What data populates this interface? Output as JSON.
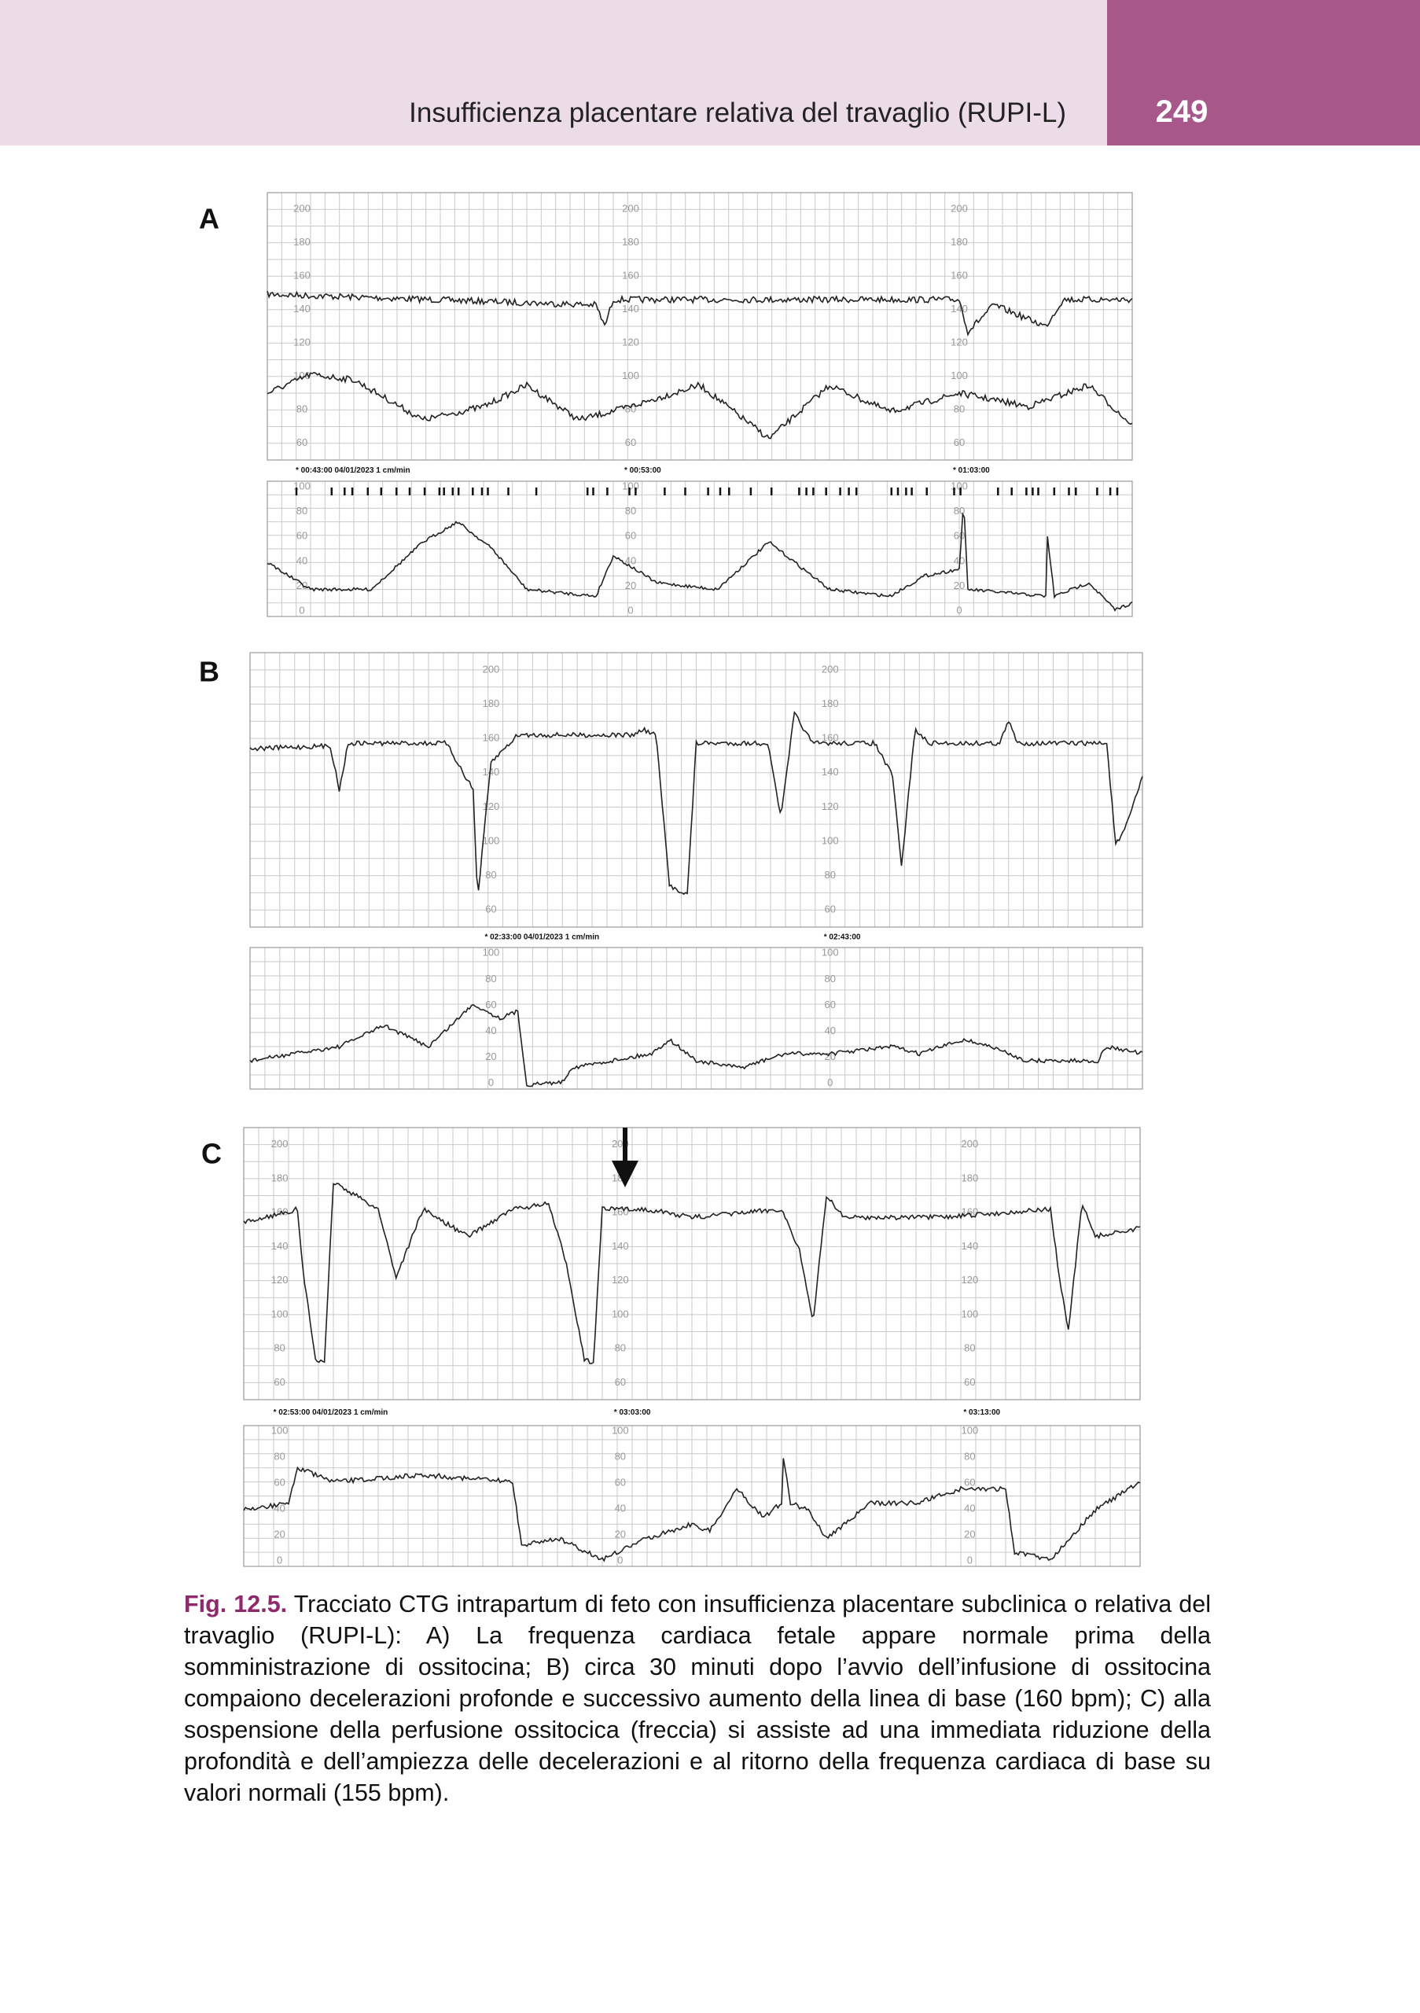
{
  "header": {
    "title": "Insufficienza placentare relativa del travaglio (RUPI-L)",
    "page_number": "249"
  },
  "figure": {
    "panels": [
      {
        "label": "A",
        "fhr_ticks": [
          200,
          180,
          160,
          140,
          120,
          100,
          80,
          60
        ],
        "uc_ticks": [
          100,
          80,
          60,
          40,
          20,
          0
        ],
        "timestamps": [
          "* 00:43:00  04/01/2023  1 cm/min",
          "* 00:53:00",
          "* 01:03:00"
        ]
      },
      {
        "label": "B",
        "fhr_ticks": [
          200,
          180,
          160,
          140,
          120,
          100,
          80,
          60
        ],
        "uc_ticks": [
          100,
          80,
          60,
          40,
          20,
          0
        ],
        "timestamps": [
          "* 02:33:00  04/01/2023  1 cm/min",
          "* 02:43:00"
        ]
      },
      {
        "label": "C",
        "fhr_ticks": [
          200,
          180,
          160,
          140,
          120,
          100,
          80,
          60
        ],
        "uc_ticks": [
          100,
          80,
          60,
          40,
          20,
          0
        ],
        "timestamps": [
          "* 02:53:00  04/01/2023  1 cm/min",
          "* 03:03:00",
          "* 03:13:00"
        ]
      }
    ],
    "caption": {
      "label": "Fig. 12.5.",
      "text": "Tracciato CTG intrapartum di feto con insufficienza placentare subclinica o relativa del travaglio (RUPI-L): A) La frequenza cardiaca fetale appare normale prima della somministrazione di ossitocina; B) circa 30 minuti dopo l’avvio dell’infusione di ossitocina compaiono decelerazioni profonde e successivo aumento della linea di base (160 bpm); C) alla sospensione della perfusione ossitocica (freccia) si assiste ad una immediata riduzione della profondità e dell’ampiezza delle decelerazioni e al ritorno della frequenza cardiaca di base su valori normali (155 bpm)."
    }
  }
}
